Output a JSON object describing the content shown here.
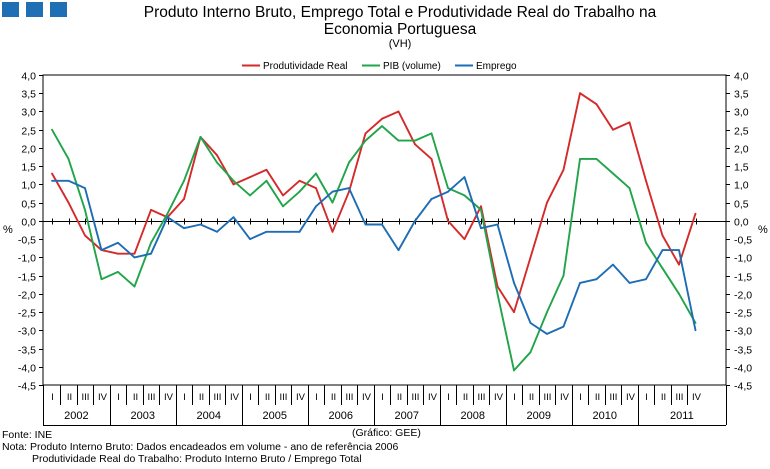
{
  "colors": {
    "produtividade": "#d42a2a",
    "pib": "#22a44a",
    "emprego": "#1e6db4",
    "logo": "#1f6fb5"
  },
  "logo_icon": "three-blue-squares-icon",
  "chart_data": {
    "type": "line",
    "title_line1": "Produto Interno Bruto, Emprego Total e Produtividade Real do Trabalho na",
    "title_line2": "Economia Portuguesa",
    "subtitle": "(VH)",
    "ylabel_left": "%",
    "ylabel_right": "%",
    "ylim": [
      -4.5,
      4.0
    ],
    "y_step": 0.5,
    "y_tick_labels": [
      "4,0",
      "3,5",
      "3,0",
      "2,5",
      "2,0",
      "1,5",
      "1,0",
      "0,5",
      "0,0",
      "-0,5",
      "-1,0",
      "-1,5",
      "-2,0",
      "-2,5",
      "-3,0",
      "-3,5",
      "-4,0",
      "-4,5"
    ],
    "quarters": [
      "I",
      "II",
      "III",
      "IV"
    ],
    "years": [
      "2002",
      "2003",
      "2004",
      "2005",
      "2006",
      "2007",
      "2008",
      "2009",
      "2010",
      "2011"
    ],
    "legend": [
      "Produtividade Real",
      "PIB (volume)",
      "Emprego"
    ],
    "legend_position": "top-center",
    "series": [
      {
        "name": "Produtividade Real",
        "color_key": "produtividade",
        "values": [
          1.3,
          0.5,
          -0.4,
          -0.8,
          -0.9,
          -0.9,
          0.3,
          0.1,
          0.6,
          2.3,
          1.8,
          1.0,
          1.2,
          1.4,
          0.7,
          1.1,
          0.9,
          -0.3,
          0.8,
          2.4,
          2.8,
          3.0,
          2.1,
          1.7,
          0.0,
          -0.5,
          0.4,
          -1.8,
          -2.5,
          -1.0,
          0.5,
          1.4,
          3.5,
          3.2,
          2.5,
          2.7,
          1.1,
          -0.4,
          -1.2,
          0.2
        ]
      },
      {
        "name": "PIB (volume)",
        "color_key": "pib",
        "values": [
          2.5,
          1.7,
          0.3,
          -1.6,
          -1.4,
          -1.8,
          -0.6,
          0.2,
          1.1,
          2.3,
          1.6,
          1.1,
          0.7,
          1.1,
          0.4,
          0.8,
          1.3,
          0.5,
          1.6,
          2.2,
          2.6,
          2.2,
          2.2,
          2.4,
          0.9,
          0.7,
          0.3,
          -2.0,
          -4.1,
          -3.6,
          -2.5,
          -1.5,
          1.7,
          1.7,
          1.3,
          0.9,
          -0.6,
          -1.3,
          -2.0,
          -2.8
        ]
      },
      {
        "name": "Emprego",
        "color_key": "emprego",
        "values": [
          1.1,
          1.1,
          0.9,
          -0.8,
          -0.6,
          -1.0,
          -0.9,
          0.1,
          -0.2,
          -0.1,
          -0.3,
          0.1,
          -0.5,
          -0.3,
          -0.3,
          -0.3,
          0.4,
          0.8,
          0.9,
          -0.1,
          -0.1,
          -0.8,
          0.0,
          0.6,
          0.8,
          1.2,
          -0.2,
          -0.1,
          -1.7,
          -2.8,
          -3.1,
          -2.9,
          -1.7,
          -1.6,
          -1.2,
          -1.7,
          -1.6,
          -0.8,
          -0.8,
          -3.0
        ]
      }
    ]
  },
  "credit": "(Gráfico: GEE)",
  "footer": {
    "source": "Fonte: INE",
    "note": "Nota: Produto Interno Bruto: Dados encadeados em volume - ano de referência 2006",
    "note2": "Produtividade Real do Trabalho: Produto Interno Bruto / Emprego Total"
  }
}
